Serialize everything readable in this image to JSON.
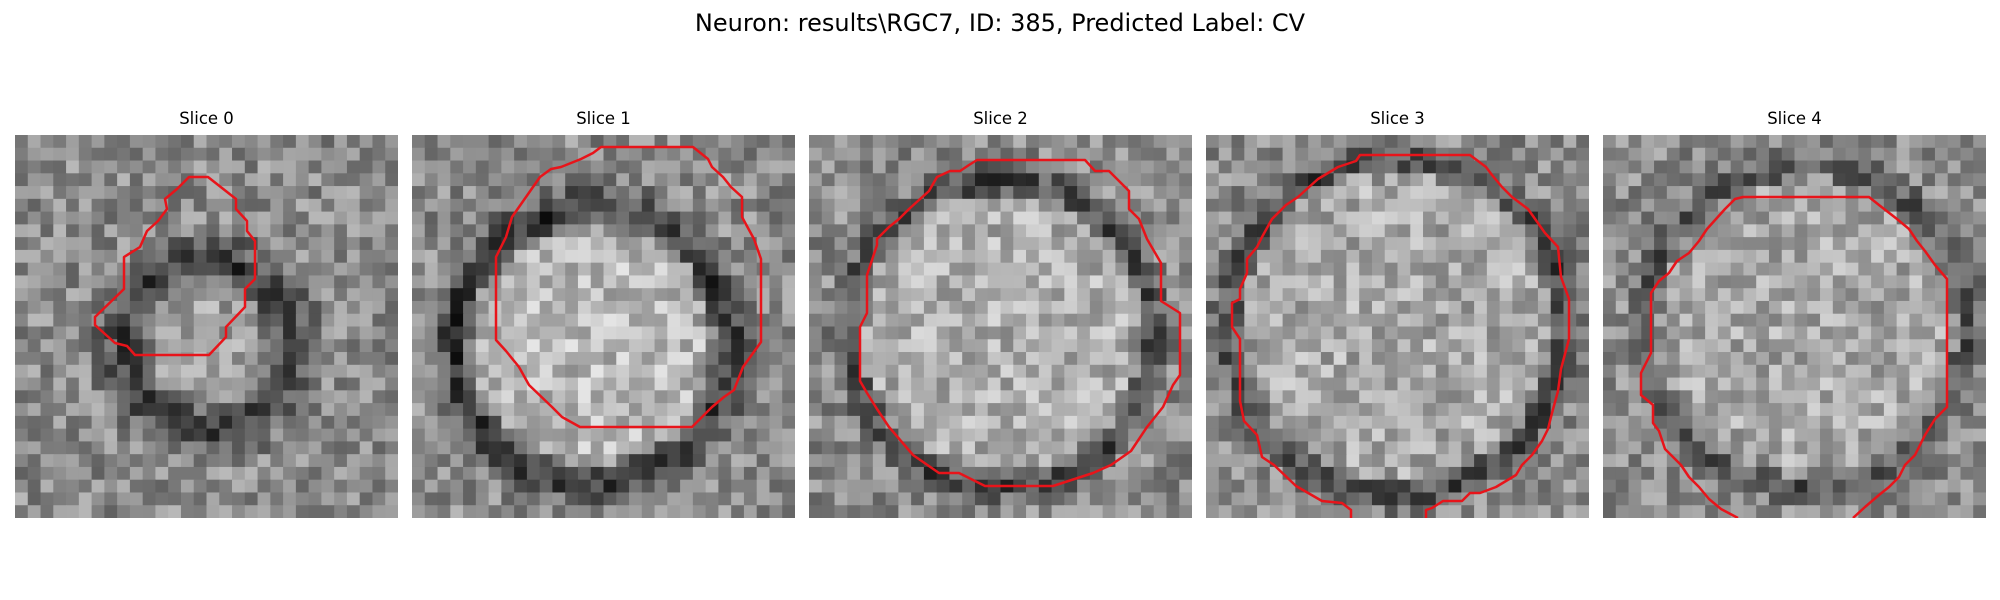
{
  "figure": {
    "title": "Neuron: results\\RGC7, ID: 385, Predicted Label: CV"
  },
  "colors": {
    "background": "#ffffff",
    "contour": "#e8141a",
    "image_colormap": "grayscale"
  },
  "slices": [
    {
      "title": "Slice 0"
    },
    {
      "title": "Slice 1"
    },
    {
      "title": "Slice 2"
    },
    {
      "title": "Slice 3"
    },
    {
      "title": "Slice 4"
    }
  ]
}
